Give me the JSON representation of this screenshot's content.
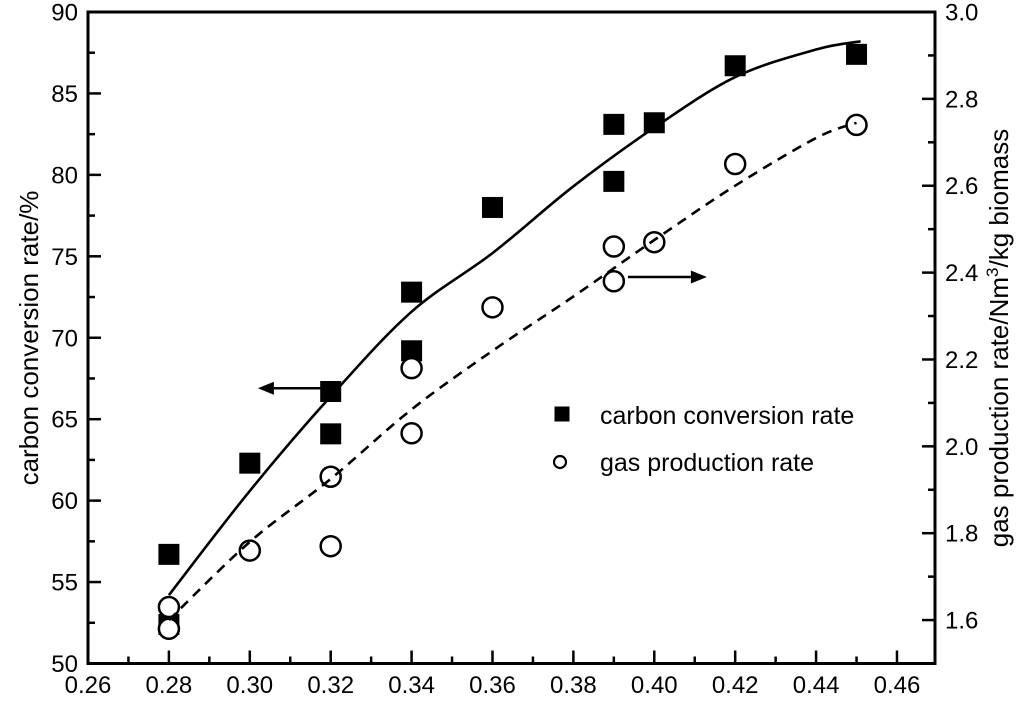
{
  "chart_data": {
    "type": "scatter",
    "title": "",
    "layout": {
      "grid": false,
      "legend_position": "center-right-inside"
    },
    "colors": {
      "foreground": "#000000",
      "background": "#ffffff"
    },
    "x_axis": {
      "label": "",
      "min": 0.26,
      "max": 0.4694,
      "major_ticks": [
        0.26,
        0.28,
        0.3,
        0.32,
        0.34,
        0.36,
        0.38,
        0.4,
        0.42,
        0.44,
        0.46
      ],
      "minor_step": 0.01,
      "decimals": 2
    },
    "y_left_axis": {
      "label": "carbon conversion rate/%",
      "min": 50,
      "max": 90,
      "major_ticks": [
        50,
        55,
        60,
        65,
        70,
        75,
        80,
        85,
        90
      ],
      "minor_step": 2.5,
      "decimals": 0
    },
    "y_right_axis": {
      "label_prefix": "gas production rate/Nm",
      "label_sup": "3",
      "label_suffix": "/kg biomass",
      "min": 1.5,
      "max": 3.0,
      "major_ticks": [
        1.6,
        1.8,
        2.0,
        2.2,
        2.4,
        2.6,
        2.8,
        3.0
      ],
      "minor_step": 0.1,
      "decimals": 1
    },
    "series": [
      {
        "name": "carbon conversion rate",
        "marker": "filled-square",
        "axis": "left",
        "points": [
          [
            0.28,
            56.7
          ],
          [
            0.28,
            52.4
          ],
          [
            0.3,
            62.3
          ],
          [
            0.32,
            66.7
          ],
          [
            0.32,
            64.1
          ],
          [
            0.34,
            72.8
          ],
          [
            0.34,
            69.2
          ],
          [
            0.36,
            78.0
          ],
          [
            0.39,
            83.1
          ],
          [
            0.39,
            79.6
          ],
          [
            0.4,
            83.2
          ],
          [
            0.42,
            86.7
          ],
          [
            0.45,
            87.4
          ]
        ]
      },
      {
        "name": "gas production rate",
        "marker": "open-circle",
        "axis": "right",
        "points": [
          [
            0.28,
            1.63
          ],
          [
            0.28,
            1.58
          ],
          [
            0.3,
            1.76
          ],
          [
            0.32,
            1.93
          ],
          [
            0.32,
            1.77
          ],
          [
            0.34,
            2.18
          ],
          [
            0.34,
            2.03
          ],
          [
            0.36,
            2.32
          ],
          [
            0.39,
            2.46
          ],
          [
            0.39,
            2.38
          ],
          [
            0.4,
            2.47
          ],
          [
            0.42,
            2.65
          ],
          [
            0.45,
            2.74
          ]
        ]
      }
    ],
    "fit_curves": [
      {
        "series": "carbon conversion rate",
        "style": "solid",
        "axis": "left",
        "samples": [
          [
            0.28,
            54.2
          ],
          [
            0.3,
            60.6
          ],
          [
            0.32,
            66.4
          ],
          [
            0.34,
            71.6
          ],
          [
            0.36,
            75.2
          ],
          [
            0.38,
            79.3
          ],
          [
            0.4,
            82.9
          ],
          [
            0.42,
            86.0
          ],
          [
            0.44,
            87.7
          ],
          [
            0.451,
            88.2
          ]
        ]
      },
      {
        "series": "gas production rate",
        "style": "dashed",
        "axis": "right",
        "samples": [
          [
            0.28,
            1.6
          ],
          [
            0.3,
            1.78
          ],
          [
            0.32,
            1.925
          ],
          [
            0.34,
            2.085
          ],
          [
            0.36,
            2.22
          ],
          [
            0.38,
            2.345
          ],
          [
            0.4,
            2.475
          ],
          [
            0.42,
            2.6
          ],
          [
            0.44,
            2.71
          ],
          [
            0.45,
            2.745
          ]
        ]
      }
    ],
    "annotations": [
      {
        "name": "left-axis-arrow",
        "axis": "left",
        "y": 66.9,
        "x_from": 0.3215,
        "x_to": 0.302,
        "direction": "left"
      },
      {
        "name": "right-axis-arrow",
        "axis": "right",
        "y": 2.39,
        "x_from": 0.3935,
        "x_to": 0.413,
        "direction": "right"
      }
    ],
    "legend": {
      "entries": [
        {
          "marker": "filled-square",
          "label": "carbon conversion rate"
        },
        {
          "marker": "open-circle",
          "label": "gas production rate"
        }
      ]
    }
  }
}
